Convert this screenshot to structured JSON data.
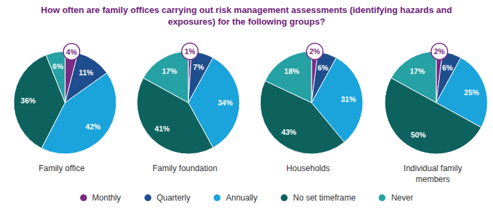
{
  "title": "How often are family offices carrying out risk management assessments (identifying hazards and exposures) for the following groups?",
  "legend": "bottom",
  "chart_data": [
    {
      "type": "pie",
      "title": "Family office",
      "categories": [
        "Monthly",
        "Quarterly",
        "Annually",
        "No set timeframe",
        "Never"
      ],
      "values": [
        4,
        11,
        42,
        36,
        6
      ],
      "value_labels": [
        "4%",
        "11%",
        "42%",
        "36%",
        "6%"
      ],
      "colors": [
        "#7a2b84",
        "#1f4e8e",
        "#1ba4dc",
        "#0d625e",
        "#26a1a4"
      ],
      "data_labels": true
    },
    {
      "type": "pie",
      "title": "Family foundation",
      "categories": [
        "Monthly",
        "Quarterly",
        "Annually",
        "No set timeframe",
        "Never"
      ],
      "values": [
        1,
        7,
        34,
        41,
        17
      ],
      "value_labels": [
        "1%",
        "7%",
        "34%",
        "41%",
        "17%"
      ],
      "colors": [
        "#7a2b84",
        "#1f4e8e",
        "#1ba4dc",
        "#0d625e",
        "#26a1a4"
      ],
      "data_labels": true
    },
    {
      "type": "pie",
      "title": "Households",
      "categories": [
        "Monthly",
        "Quarterly",
        "Annually",
        "No set timeframe",
        "Never"
      ],
      "values": [
        2,
        6,
        31,
        43,
        18
      ],
      "value_labels": [
        "2%",
        "6%",
        "31%",
        "43%",
        "18%"
      ],
      "colors": [
        "#7a2b84",
        "#1f4e8e",
        "#1ba4dc",
        "#0d625e",
        "#26a1a4"
      ],
      "data_labels": true
    },
    {
      "type": "pie",
      "title": "Individual family members",
      "categories": [
        "Monthly",
        "Quarterly",
        "Annually",
        "No set timeframe",
        "Never"
      ],
      "values": [
        2,
        6,
        25,
        50,
        17
      ],
      "value_labels": [
        "2%",
        "6%",
        "25%",
        "50%",
        "17%"
      ],
      "colors": [
        "#7a2b84",
        "#1f4e8e",
        "#1ba4dc",
        "#0d625e",
        "#26a1a4"
      ],
      "data_labels": true
    }
  ]
}
